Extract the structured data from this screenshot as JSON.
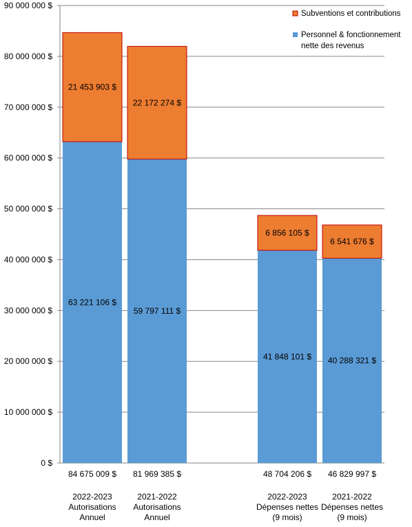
{
  "chart_data": {
    "type": "bar",
    "stacked": true,
    "categories": [
      [
        "2022-2023",
        "Autorisations",
        "Annuel"
      ],
      [
        "2021-2022",
        "Autorisations",
        "Annuel"
      ],
      [],
      [
        "2022-2023",
        "Dépenses nettes",
        "(9 mois)"
      ],
      [
        "2021-2022",
        "Dépenses nettes",
        "(9 mois)"
      ]
    ],
    "series": [
      {
        "name": "Personnel & fonctionnement nette des revenus",
        "legend_lines": [
          "Personnel & fonctionnement",
          "nette des revenus"
        ],
        "color": "#5b9bd5",
        "values": [
          63221106,
          59797111,
          null,
          41848101,
          40288321
        ],
        "labels": [
          "63 221 106 $",
          "59 797 111 $",
          "",
          "41 848 101 $",
          "40 288 321 $"
        ]
      },
      {
        "name": "Subventions et contributions",
        "legend_lines": [
          "Subventions et contributions"
        ],
        "color": "#ed7d31",
        "border_color": "#c00000",
        "values": [
          21453903,
          22172274,
          null,
          6856105,
          6541676
        ],
        "labels": [
          "21 453 903 $",
          "22 172 274 $",
          "",
          "6 856 105 $",
          "6 541 676 $"
        ]
      }
    ],
    "totals": [
      "84 675 009 $",
      "81 969 385 $",
      "",
      "48 704 206 $",
      "46 829 997 $"
    ],
    "ylim": [
      0,
      90000000
    ],
    "yticks": [
      0,
      10000000,
      20000000,
      30000000,
      40000000,
      50000000,
      60000000,
      70000000,
      80000000,
      90000000
    ],
    "ytick_labels": [
      "0 $",
      "10 000 000 $",
      "20 000 000 $",
      "30 000 000 $",
      "40 000 000 $",
      "50 000 000 $",
      "60 000 000 $",
      "70 000 000 $",
      "80 000 000 $",
      "90 000 000 $"
    ],
    "grid": true,
    "legend_position": "top-right",
    "title": "",
    "xlabel": "",
    "ylabel": ""
  }
}
